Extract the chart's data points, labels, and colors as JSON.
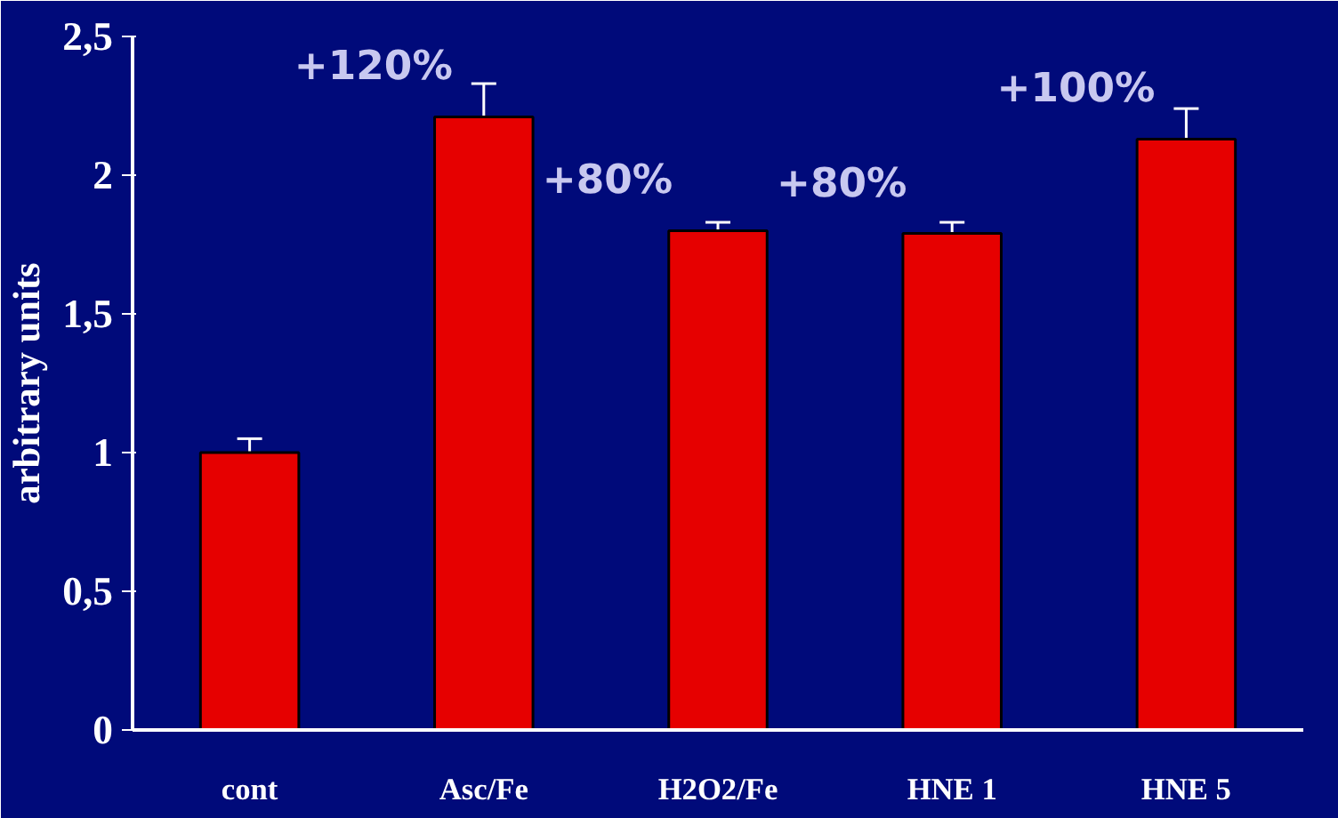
{
  "chart_data": {
    "type": "bar",
    "ylabel": "arbitrary units",
    "categories": [
      "cont",
      "Asc/Fe",
      "H2O2/Fe",
      "HNE 1",
      "HNE 5"
    ],
    "values": [
      1.0,
      2.21,
      1.8,
      1.79,
      2.13
    ],
    "errors": [
      [
        1.0,
        1.05
      ],
      [
        2.21,
        2.33
      ],
      [
        1.8,
        1.83
      ],
      [
        1.79,
        1.83
      ],
      [
        2.13,
        2.24
      ]
    ],
    "color": "#e60000",
    "ylim": [
      0,
      2.5
    ],
    "yticks": [
      0,
      {
        "value": 0.5,
        "label": "0,5"
      },
      1,
      {
        "value": 1.5,
        "label": "1,5"
      },
      2,
      {
        "value": 2.5,
        "label": "2,5"
      }
    ],
    "grid": false,
    "annotations": [
      "+120%",
      "+80%",
      "+80%",
      "+100%"
    ]
  }
}
